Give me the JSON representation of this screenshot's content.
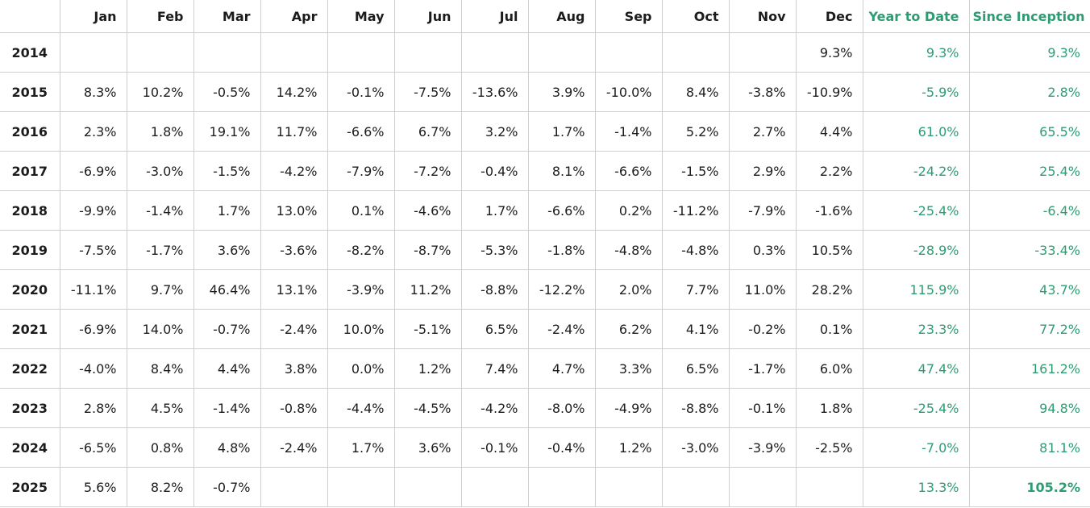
{
  "table": {
    "headers": [
      "",
      "Jan",
      "Feb",
      "Mar",
      "Apr",
      "May",
      "Jun",
      "Jul",
      "Aug",
      "Sep",
      "Oct",
      "Nov",
      "Dec",
      "Year to Date",
      "Since Inception"
    ],
    "accent_color": "#2e9c72",
    "rows": [
      {
        "year": "2014",
        "months": [
          "",
          "",
          "",
          "",
          "",
          "",
          "",
          "",
          "",
          "",
          "",
          "9.3%"
        ],
        "ytd": "9.3%",
        "since_inception": "9.3%"
      },
      {
        "year": "2015",
        "months": [
          "8.3%",
          "10.2%",
          "-0.5%",
          "14.2%",
          "-0.1%",
          "-7.5%",
          "-13.6%",
          "3.9%",
          "-10.0%",
          "8.4%",
          "-3.8%",
          "-10.9%"
        ],
        "ytd": "-5.9%",
        "since_inception": "2.8%"
      },
      {
        "year": "2016",
        "months": [
          "2.3%",
          "1.8%",
          "19.1%",
          "11.7%",
          "-6.6%",
          "6.7%",
          "3.2%",
          "1.7%",
          "-1.4%",
          "5.2%",
          "2.7%",
          "4.4%"
        ],
        "ytd": "61.0%",
        "since_inception": "65.5%"
      },
      {
        "year": "2017",
        "months": [
          "-6.9%",
          "-3.0%",
          "-1.5%",
          "-4.2%",
          "-7.9%",
          "-7.2%",
          "-0.4%",
          "8.1%",
          "-6.6%",
          "-1.5%",
          "2.9%",
          "2.2%"
        ],
        "ytd": "-24.2%",
        "since_inception": "25.4%"
      },
      {
        "year": "2018",
        "months": [
          "-9.9%",
          "-1.4%",
          "1.7%",
          "13.0%",
          "0.1%",
          "-4.6%",
          "1.7%",
          "-6.6%",
          "0.2%",
          "-11.2%",
          "-7.9%",
          "-1.6%"
        ],
        "ytd": "-25.4%",
        "since_inception": "-6.4%"
      },
      {
        "year": "2019",
        "months": [
          "-7.5%",
          "-1.7%",
          "3.6%",
          "-3.6%",
          "-8.2%",
          "-8.7%",
          "-5.3%",
          "-1.8%",
          "-4.8%",
          "-4.8%",
          "0.3%",
          "10.5%"
        ],
        "ytd": "-28.9%",
        "since_inception": "-33.4%"
      },
      {
        "year": "2020",
        "months": [
          "-11.1%",
          "9.7%",
          "46.4%",
          "13.1%",
          "-3.9%",
          "11.2%",
          "-8.8%",
          "-12.2%",
          "2.0%",
          "7.7%",
          "11.0%",
          "28.2%"
        ],
        "ytd": "115.9%",
        "since_inception": "43.7%"
      },
      {
        "year": "2021",
        "months": [
          "-6.9%",
          "14.0%",
          "-0.7%",
          "-2.4%",
          "10.0%",
          "-5.1%",
          "6.5%",
          "-2.4%",
          "6.2%",
          "4.1%",
          "-0.2%",
          "0.1%"
        ],
        "ytd": "23.3%",
        "since_inception": "77.2%"
      },
      {
        "year": "2022",
        "months": [
          "-4.0%",
          "8.4%",
          "4.4%",
          "3.8%",
          "0.0%",
          "1.2%",
          "7.4%",
          "4.7%",
          "3.3%",
          "6.5%",
          "-1.7%",
          "6.0%"
        ],
        "ytd": "47.4%",
        "since_inception": "161.2%"
      },
      {
        "year": "2023",
        "months": [
          "2.8%",
          "4.5%",
          "-1.4%",
          "-0.8%",
          "-4.4%",
          "-4.5%",
          "-4.2%",
          "-8.0%",
          "-4.9%",
          "-8.8%",
          "-0.1%",
          "1.8%"
        ],
        "ytd": "-25.4%",
        "since_inception": "94.8%"
      },
      {
        "year": "2024",
        "months": [
          "-6.5%",
          "0.8%",
          "4.8%",
          "-2.4%",
          "1.7%",
          "3.6%",
          "-0.1%",
          "-0.4%",
          "1.2%",
          "-3.0%",
          "-3.9%",
          "-2.5%"
        ],
        "ytd": "-7.0%",
        "since_inception": "81.1%"
      },
      {
        "year": "2025",
        "months": [
          "5.6%",
          "8.2%",
          "-0.7%",
          "",
          "",
          "",
          "",
          "",
          "",
          "",
          "",
          ""
        ],
        "ytd": "13.3%",
        "since_inception": "105.2%",
        "since_inception_bold": true
      }
    ]
  }
}
